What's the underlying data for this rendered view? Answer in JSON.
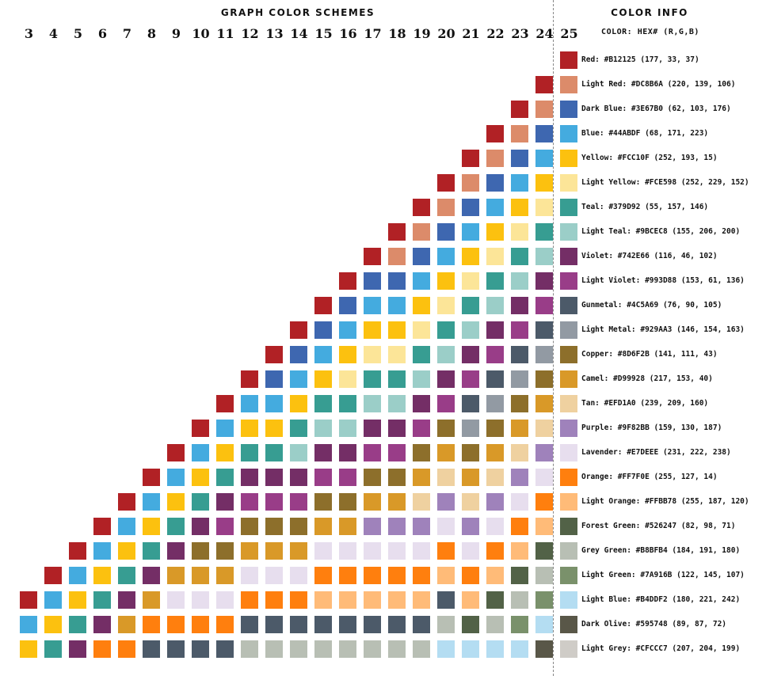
{
  "header": {
    "title": "GRAPH COLOR SCHEMES",
    "info_title": "COLOR INFO",
    "info_subtitle": "COLOR: HEX# (R,G,B)"
  },
  "chart_data": {
    "type": "table",
    "columns": [
      3,
      4,
      5,
      6,
      7,
      8,
      9,
      10,
      11,
      12,
      13,
      14,
      15,
      16,
      17,
      18,
      19,
      20,
      21,
      22,
      23,
      24,
      25
    ],
    "colors": [
      {
        "name": "Red",
        "hex": "#B12125",
        "rgb": [
          177,
          33,
          37
        ],
        "label": "Red: #B12125 (177, 33, 37)"
      },
      {
        "name": "Light Red",
        "hex": "#DC8B6A",
        "rgb": [
          220,
          139,
          106
        ],
        "label": "Light Red: #DC8B6A (220, 139, 106)"
      },
      {
        "name": "Dark Blue",
        "hex": "#3E67B0",
        "rgb": [
          62,
          103,
          176
        ],
        "label": "Dark Blue: #3E67B0 (62, 103, 176)"
      },
      {
        "name": "Blue",
        "hex": "#44ABDF",
        "rgb": [
          68,
          171,
          223
        ],
        "label": "Blue: #44ABDF (68, 171, 223)"
      },
      {
        "name": "Yellow",
        "hex": "#FCC10F",
        "rgb": [
          252,
          193,
          15
        ],
        "label": "Yellow: #FCC10F (252, 193, 15)"
      },
      {
        "name": "Light Yellow",
        "hex": "#FCE598",
        "rgb": [
          252,
          229,
          152
        ],
        "label": "Light Yellow: #FCE598 (252, 229, 152)"
      },
      {
        "name": "Teal",
        "hex": "#379D92",
        "rgb": [
          55,
          157,
          146
        ],
        "label": "Teal: #379D92 (55, 157, 146)"
      },
      {
        "name": "Light Teal",
        "hex": "#9BCEC8",
        "rgb": [
          155,
          206,
          200
        ],
        "label": "Light Teal: #9BCEC8 (155, 206, 200)"
      },
      {
        "name": "Violet",
        "hex": "#742E66",
        "rgb": [
          116,
          46,
          102
        ],
        "label": "Violet: #742E66 (116, 46, 102)"
      },
      {
        "name": "Light Violet",
        "hex": "#993D88",
        "rgb": [
          153,
          61,
          136
        ],
        "label": "Light Violet: #993D88 (153, 61, 136)"
      },
      {
        "name": "Gunmetal",
        "hex": "#4C5A69",
        "rgb": [
          76,
          90,
          105
        ],
        "label": "Gunmetal: #4C5A69 (76, 90, 105)"
      },
      {
        "name": "Light Metal",
        "hex": "#929AA3",
        "rgb": [
          146,
          154,
          163
        ],
        "label": "Light Metal: #929AA3 (146, 154, 163)"
      },
      {
        "name": "Copper",
        "hex": "#8D6F2B",
        "rgb": [
          141,
          111,
          43
        ],
        "label": "Copper: #8D6F2B (141, 111, 43)"
      },
      {
        "name": "Camel",
        "hex": "#D99928",
        "rgb": [
          217,
          153,
          40
        ],
        "label": "Camel: #D99928 (217, 153, 40)"
      },
      {
        "name": "Tan",
        "hex": "#EFD1A0",
        "rgb": [
          239,
          209,
          160
        ],
        "label": "Tan: #EFD1A0 (239, 209, 160)"
      },
      {
        "name": "Purple",
        "hex": "#9F82BB",
        "rgb": [
          159,
          130,
          187
        ],
        "label": "Purple: #9F82BB (159, 130, 187)"
      },
      {
        "name": "Lavender",
        "hex": "#E7DEEE",
        "rgb": [
          231,
          222,
          238
        ],
        "label": "Lavender: #E7DEEE (231, 222, 238)"
      },
      {
        "name": "Orange",
        "hex": "#FF7F0E",
        "rgb": [
          255,
          127,
          14
        ],
        "label": "Orange: #FF7F0E (255, 127, 14)"
      },
      {
        "name": "Light Orange",
        "hex": "#FFBB78",
        "rgb": [
          255,
          187,
          120
        ],
        "label": "Light Orange: #FFBB78 (255, 187, 120)"
      },
      {
        "name": "Forest Green",
        "hex": "#526247",
        "rgb": [
          82,
          98,
          71
        ],
        "label": "Forest Green: #526247 (82, 98, 71)"
      },
      {
        "name": "Grey Green",
        "hex": "#B8BFB4",
        "rgb": [
          184,
          191,
          180
        ],
        "label": "Grey Green: #B8BFB4 (184, 191, 180)"
      },
      {
        "name": "Light Green",
        "hex": "#7A916B",
        "rgb": [
          122,
          145,
          107
        ],
        "label": "Light Green: #7A916B (122, 145, 107)"
      },
      {
        "name": "Light Blue",
        "hex": "#B4DDF2",
        "rgb": [
          180,
          221,
          242
        ],
        "label": "Light Blue: #B4DDF2 (180, 221, 242)"
      },
      {
        "name": "Dark Olive",
        "hex": "#595748",
        "rgb": [
          89,
          87,
          72
        ],
        "label": "Dark Olive: #595748 (89, 87, 72)"
      },
      {
        "name": "Light Grey",
        "hex": "#CFCCC7",
        "rgb": [
          207,
          204,
          199
        ],
        "label": "Light Grey: #CFCCC7 (207, 204, 199)"
      }
    ],
    "schemes": {
      "3": [
        "#B12125",
        "#44ABDF",
        "#FCC10F"
      ],
      "4": [
        "#B12125",
        "#44ABDF",
        "#FCC10F",
        "#379D92"
      ],
      "5": [
        "#B12125",
        "#44ABDF",
        "#FCC10F",
        "#379D92",
        "#742E66"
      ],
      "6": [
        "#B12125",
        "#44ABDF",
        "#FCC10F",
        "#379D92",
        "#742E66",
        "#FF7F0E"
      ],
      "7": [
        "#B12125",
        "#44ABDF",
        "#FCC10F",
        "#379D92",
        "#742E66",
        "#D99928",
        "#FF7F0E"
      ],
      "8": [
        "#B12125",
        "#44ABDF",
        "#FCC10F",
        "#379D92",
        "#742E66",
        "#D99928",
        "#FF7F0E",
        "#4C5A69"
      ],
      "9": [
        "#B12125",
        "#44ABDF",
        "#FCC10F",
        "#379D92",
        "#742E66",
        "#D99928",
        "#E7DEEE",
        "#FF7F0E",
        "#4C5A69"
      ],
      "10": [
        "#B12125",
        "#44ABDF",
        "#FCC10F",
        "#379D92",
        "#742E66",
        "#8D6F2B",
        "#D99928",
        "#E7DEEE",
        "#FF7F0E",
        "#4C5A69"
      ],
      "11": [
        "#B12125",
        "#44ABDF",
        "#FCC10F",
        "#379D92",
        "#742E66",
        "#993D88",
        "#8D6F2B",
        "#D99928",
        "#E7DEEE",
        "#FF7F0E",
        "#4C5A69"
      ],
      "12": [
        "#B12125",
        "#44ABDF",
        "#FCC10F",
        "#379D92",
        "#742E66",
        "#993D88",
        "#8D6F2B",
        "#D99928",
        "#E7DEEE",
        "#FF7F0E",
        "#4C5A69",
        "#B8BFB4"
      ],
      "13": [
        "#B12125",
        "#3E67B0",
        "#44ABDF",
        "#FCC10F",
        "#379D92",
        "#742E66",
        "#993D88",
        "#8D6F2B",
        "#D99928",
        "#E7DEEE",
        "#FF7F0E",
        "#4C5A69",
        "#B8BFB4"
      ],
      "14": [
        "#B12125",
        "#3E67B0",
        "#44ABDF",
        "#FCC10F",
        "#379D92",
        "#9BCEC8",
        "#742E66",
        "#993D88",
        "#8D6F2B",
        "#D99928",
        "#E7DEEE",
        "#FF7F0E",
        "#4C5A69",
        "#B8BFB4"
      ],
      "15": [
        "#B12125",
        "#3E67B0",
        "#44ABDF",
        "#FCC10F",
        "#379D92",
        "#9BCEC8",
        "#742E66",
        "#993D88",
        "#8D6F2B",
        "#D99928",
        "#E7DEEE",
        "#FF7F0E",
        "#FFBB78",
        "#4C5A69",
        "#B8BFB4"
      ],
      "16": [
        "#B12125",
        "#3E67B0",
        "#44ABDF",
        "#FCC10F",
        "#FCE598",
        "#379D92",
        "#9BCEC8",
        "#742E66",
        "#993D88",
        "#8D6F2B",
        "#D99928",
        "#E7DEEE",
        "#FF7F0E",
        "#FFBB78",
        "#4C5A69",
        "#B8BFB4"
      ],
      "17": [
        "#B12125",
        "#3E67B0",
        "#44ABDF",
        "#FCC10F",
        "#FCE598",
        "#379D92",
        "#9BCEC8",
        "#742E66",
        "#993D88",
        "#8D6F2B",
        "#D99928",
        "#9F82BB",
        "#E7DEEE",
        "#FF7F0E",
        "#FFBB78",
        "#4C5A69",
        "#B8BFB4"
      ],
      "18": [
        "#B12125",
        "#DC8B6A",
        "#3E67B0",
        "#44ABDF",
        "#FCC10F",
        "#FCE598",
        "#379D92",
        "#9BCEC8",
        "#742E66",
        "#993D88",
        "#8D6F2B",
        "#D99928",
        "#9F82BB",
        "#E7DEEE",
        "#FF7F0E",
        "#FFBB78",
        "#4C5A69",
        "#B8BFB4"
      ],
      "19": [
        "#B12125",
        "#DC8B6A",
        "#3E67B0",
        "#44ABDF",
        "#FCC10F",
        "#FCE598",
        "#379D92",
        "#9BCEC8",
        "#742E66",
        "#993D88",
        "#8D6F2B",
        "#D99928",
        "#EFD1A0",
        "#9F82BB",
        "#E7DEEE",
        "#FF7F0E",
        "#FFBB78",
        "#4C5A69",
        "#B8BFB4"
      ],
      "20": [
        "#B12125",
        "#DC8B6A",
        "#3E67B0",
        "#44ABDF",
        "#FCC10F",
        "#FCE598",
        "#379D92",
        "#9BCEC8",
        "#742E66",
        "#993D88",
        "#8D6F2B",
        "#D99928",
        "#EFD1A0",
        "#9F82BB",
        "#E7DEEE",
        "#FF7F0E",
        "#FFBB78",
        "#4C5A69",
        "#B8BFB4",
        "#B4DDF2"
      ],
      "21": [
        "#B12125",
        "#DC8B6A",
        "#3E67B0",
        "#44ABDF",
        "#FCC10F",
        "#FCE598",
        "#379D92",
        "#9BCEC8",
        "#742E66",
        "#993D88",
        "#4C5A69",
        "#929AA3",
        "#8D6F2B",
        "#D99928",
        "#EFD1A0",
        "#9F82BB",
        "#E7DEEE",
        "#FF7F0E",
        "#FFBB78",
        "#526247",
        "#B4DDF2"
      ],
      "22": [
        "#B12125",
        "#DC8B6A",
        "#3E67B0",
        "#44ABDF",
        "#FCC10F",
        "#FCE598",
        "#379D92",
        "#9BCEC8",
        "#742E66",
        "#993D88",
        "#4C5A69",
        "#929AA3",
        "#8D6F2B",
        "#D99928",
        "#EFD1A0",
        "#9F82BB",
        "#E7DEEE",
        "#FF7F0E",
        "#FFBB78",
        "#526247",
        "#B8BFB4",
        "#B4DDF2"
      ],
      "23": [
        "#B12125",
        "#DC8B6A",
        "#3E67B0",
        "#44ABDF",
        "#FCC10F",
        "#FCE598",
        "#379D92",
        "#9BCEC8",
        "#742E66",
        "#993D88",
        "#4C5A69",
        "#929AA3",
        "#8D6F2B",
        "#D99928",
        "#EFD1A0",
        "#9F82BB",
        "#E7DEEE",
        "#FF7F0E",
        "#FFBB78",
        "#526247",
        "#B8BFB4",
        "#7A916B",
        "#B4DDF2"
      ],
      "24": [
        "#B12125",
        "#DC8B6A",
        "#3E67B0",
        "#44ABDF",
        "#FCC10F",
        "#FCE598",
        "#379D92",
        "#9BCEC8",
        "#742E66",
        "#993D88",
        "#4C5A69",
        "#929AA3",
        "#8D6F2B",
        "#D99928",
        "#EFD1A0",
        "#9F82BB",
        "#E7DEEE",
        "#FF7F0E",
        "#FFBB78",
        "#526247",
        "#B8BFB4",
        "#7A916B",
        "#B4DDF2",
        "#595748"
      ],
      "25": [
        "#B12125",
        "#DC8B6A",
        "#3E67B0",
        "#44ABDF",
        "#FCC10F",
        "#FCE598",
        "#379D92",
        "#9BCEC8",
        "#742E66",
        "#993D88",
        "#4C5A69",
        "#929AA3",
        "#8D6F2B",
        "#D99928",
        "#EFD1A0",
        "#9F82BB",
        "#E7DEEE",
        "#FF7F0E",
        "#FFBB78",
        "#526247",
        "#B8BFB4",
        "#7A916B",
        "#B4DDF2",
        "#595748",
        "#CFCCC7"
      ]
    }
  }
}
